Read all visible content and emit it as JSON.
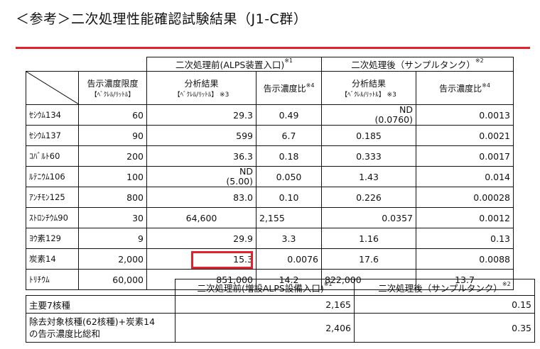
{
  "title": "＜参考＞二次処理性能確認試験結果（J1-C群）",
  "table1": {
    "group_pre": "二次処理前(ALPS装置入口)",
    "group_pre_note": "※1",
    "group_post": "二次処理後（サンプルタンク）",
    "group_post_note": "※2",
    "col_limit": "告示濃度限度",
    "col_limit_unit": "【ﾍﾞｸﾚﾙ/ﾘｯﾄﾙ】",
    "col_pre_result": "分析結果",
    "col_pre_result_unit": "【ﾍﾞｸﾚﾙ/ﾘｯﾄﾙ】 ※3",
    "col_pre_ratio": "告示濃度比",
    "col_pre_ratio_note": "※4",
    "col_post_result": "分析結果",
    "col_post_result_unit": "【ﾍﾞｸﾚﾙ/ﾘｯﾄﾙ】 ※3",
    "col_post_ratio": "告示濃度比",
    "col_post_ratio_note": "※4",
    "rows": [
      {
        "name": "ｾｼｳﾑ134",
        "limit": "60",
        "pre": "29.3",
        "pre_ratio": "0.49",
        "post": "ND",
        "post2": "(0.0760)",
        "post_ratio": "0.0013"
      },
      {
        "name": "ｾｼｳﾑ137",
        "limit": "90",
        "pre": "599",
        "pre_ratio": "6.7",
        "post": "0.185",
        "post2": "",
        "post_ratio": "0.0021"
      },
      {
        "name": "ｺﾊﾞﾙﾄ60",
        "limit": "200",
        "pre": "36.3",
        "pre_ratio": "0.18",
        "post": "0.333",
        "post2": "",
        "post_ratio": "0.0017"
      },
      {
        "name": "ﾙﾃﾆｳﾑ106",
        "limit": "100",
        "pre": "ND",
        "pre2": "(5.00)",
        "pre_ratio": "0.050",
        "post": "1.43",
        "post2": "",
        "post_ratio": "0.014"
      },
      {
        "name": "ｱﾝﾁﾓﾝ125",
        "limit": "800",
        "pre": "83.0",
        "pre_ratio": "0.10",
        "post": "0.226",
        "post2": "",
        "post_ratio": "0.00028"
      },
      {
        "name": "ｽﾄﾛﾝﾁｳﾑ90",
        "limit": "30",
        "pre": "64,600",
        "pre_ratio": "2,155",
        "post": "0.0357",
        "post2": "",
        "post_ratio": "0.0012"
      },
      {
        "name": "ﾖｳ素129",
        "limit": "9",
        "pre": "29.9",
        "pre_ratio": "3.3",
        "post": "1.16",
        "post2": "",
        "post_ratio": "0.13"
      },
      {
        "name": "炭素14",
        "limit": "2,000",
        "pre": "15.3",
        "pre_ratio": "0.0076",
        "post": "17.6",
        "post2": "",
        "post_ratio": "0.0088"
      },
      {
        "name": "ﾄﾘﾁｳﾑ",
        "limit": "60,000",
        "pre": "851,000",
        "pre_ratio": "14.2",
        "post": "822,000",
        "post2": "",
        "post_ratio": "13.7"
      }
    ]
  },
  "table2": {
    "col_pre": "二次処理前(増設ALPS設備入口)",
    "col_pre_note": "※1",
    "col_post": "二次処理後（サンプルタンク）",
    "col_post_note": "※2",
    "rows": [
      {
        "label": "主要7核種",
        "label2": "",
        "pre": "2,165",
        "post": "0.15"
      },
      {
        "label": "除去対象核種(62核種)+炭素14",
        "label2": "の告示濃度比総和",
        "pre": "2,406",
        "post": "0.35"
      }
    ]
  },
  "colors": {
    "accent_red": "#e5212b"
  }
}
